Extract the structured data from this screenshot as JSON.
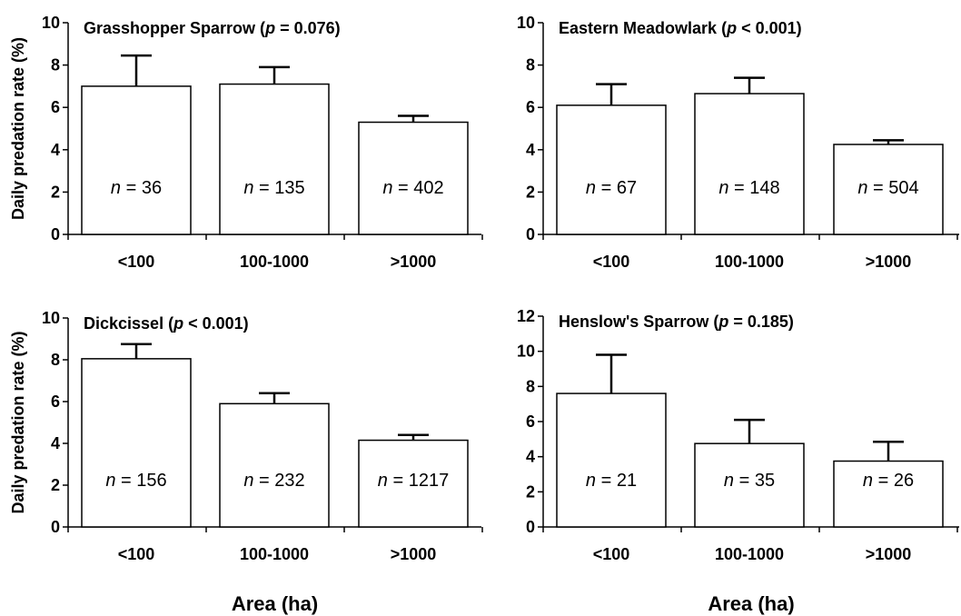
{
  "chart_data": [
    {
      "type": "bar",
      "title": "Grasshopper Sparrow (p = 0.076)",
      "title_parts": {
        "prefix": "Grasshopper Sparrow (",
        "p": "p",
        "suffix": " = 0.076)"
      },
      "ylabel": "Daily predation rate (%)",
      "xlabel": "",
      "ylim": [
        0,
        10
      ],
      "yticks": [
        "0",
        "2",
        "4",
        "6",
        "8",
        "10"
      ],
      "categories": [
        "<100",
        "100-1000",
        ">1000"
      ],
      "values": [
        7.0,
        7.1,
        5.3
      ],
      "errors": [
        1.45,
        0.8,
        0.3
      ],
      "n_labels": [
        "36",
        "135",
        "402"
      ]
    },
    {
      "type": "bar",
      "title": "Eastern Meadowlark (p < 0.001)",
      "title_parts": {
        "prefix": "Eastern Meadowlark (",
        "p": "p",
        "suffix": " < 0.001)"
      },
      "ylabel": "",
      "xlabel": "",
      "ylim": [
        0,
        10
      ],
      "yticks": [
        "0",
        "2",
        "4",
        "6",
        "8",
        "10"
      ],
      "categories": [
        "<100",
        "100-1000",
        ">1000"
      ],
      "values": [
        6.1,
        6.65,
        4.25
      ],
      "errors": [
        1.0,
        0.75,
        0.2
      ],
      "n_labels": [
        "67",
        "148",
        "504"
      ]
    },
    {
      "type": "bar",
      "title": "Dickcissel (p < 0.001)",
      "title_parts": {
        "prefix": "Dickcissel (",
        "p": "p",
        "suffix": " < 0.001)"
      },
      "ylabel": "Daily predation rate (%)",
      "xlabel": "Area (ha)",
      "ylim": [
        0,
        10
      ],
      "yticks": [
        "0",
        "2",
        "4",
        "6",
        "8",
        "10"
      ],
      "categories": [
        "<100",
        "100-1000",
        ">1000"
      ],
      "values": [
        8.05,
        5.9,
        4.15
      ],
      "errors": [
        0.7,
        0.5,
        0.25
      ],
      "n_labels": [
        "156",
        "232",
        "1217"
      ]
    },
    {
      "type": "bar",
      "title": "Henslow's Sparrow (p = 0.185)",
      "title_parts": {
        "prefix": "Henslow's Sparrow (",
        "p": "p",
        "suffix": " = 0.185)"
      },
      "ylabel": "",
      "xlabel": "Area (ha)",
      "ylim": [
        0,
        12
      ],
      "yticks": [
        "0",
        "2",
        "4",
        "6",
        "8",
        "10",
        "12"
      ],
      "categories": [
        "<100",
        "100-1000",
        ">1000"
      ],
      "values": [
        7.6,
        4.75,
        3.75
      ],
      "errors": [
        2.2,
        1.35,
        1.1
      ],
      "n_labels": [
        "21",
        "35",
        "26"
      ]
    }
  ],
  "n_prefix": "n",
  "n_equals": " = "
}
